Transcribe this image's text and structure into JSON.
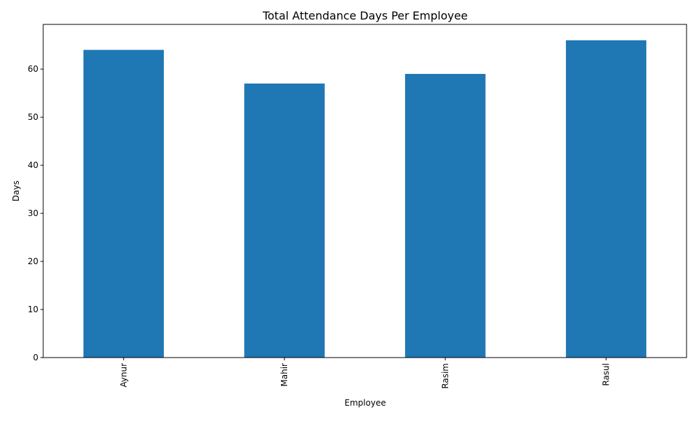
{
  "chart_data": {
    "type": "bar",
    "title": "Total Attendance Days Per Employee",
    "xlabel": "Employee",
    "ylabel": "Days",
    "categories": [
      "Aynur",
      "Mahir",
      "Rasim",
      "Rasul"
    ],
    "values": [
      64,
      57,
      59,
      66
    ],
    "ylim": [
      0,
      69.3
    ],
    "yticks": [
      0,
      10,
      20,
      30,
      40,
      50,
      60
    ],
    "bar_color": "#1f77b4",
    "grid": false,
    "legend": "none"
  }
}
